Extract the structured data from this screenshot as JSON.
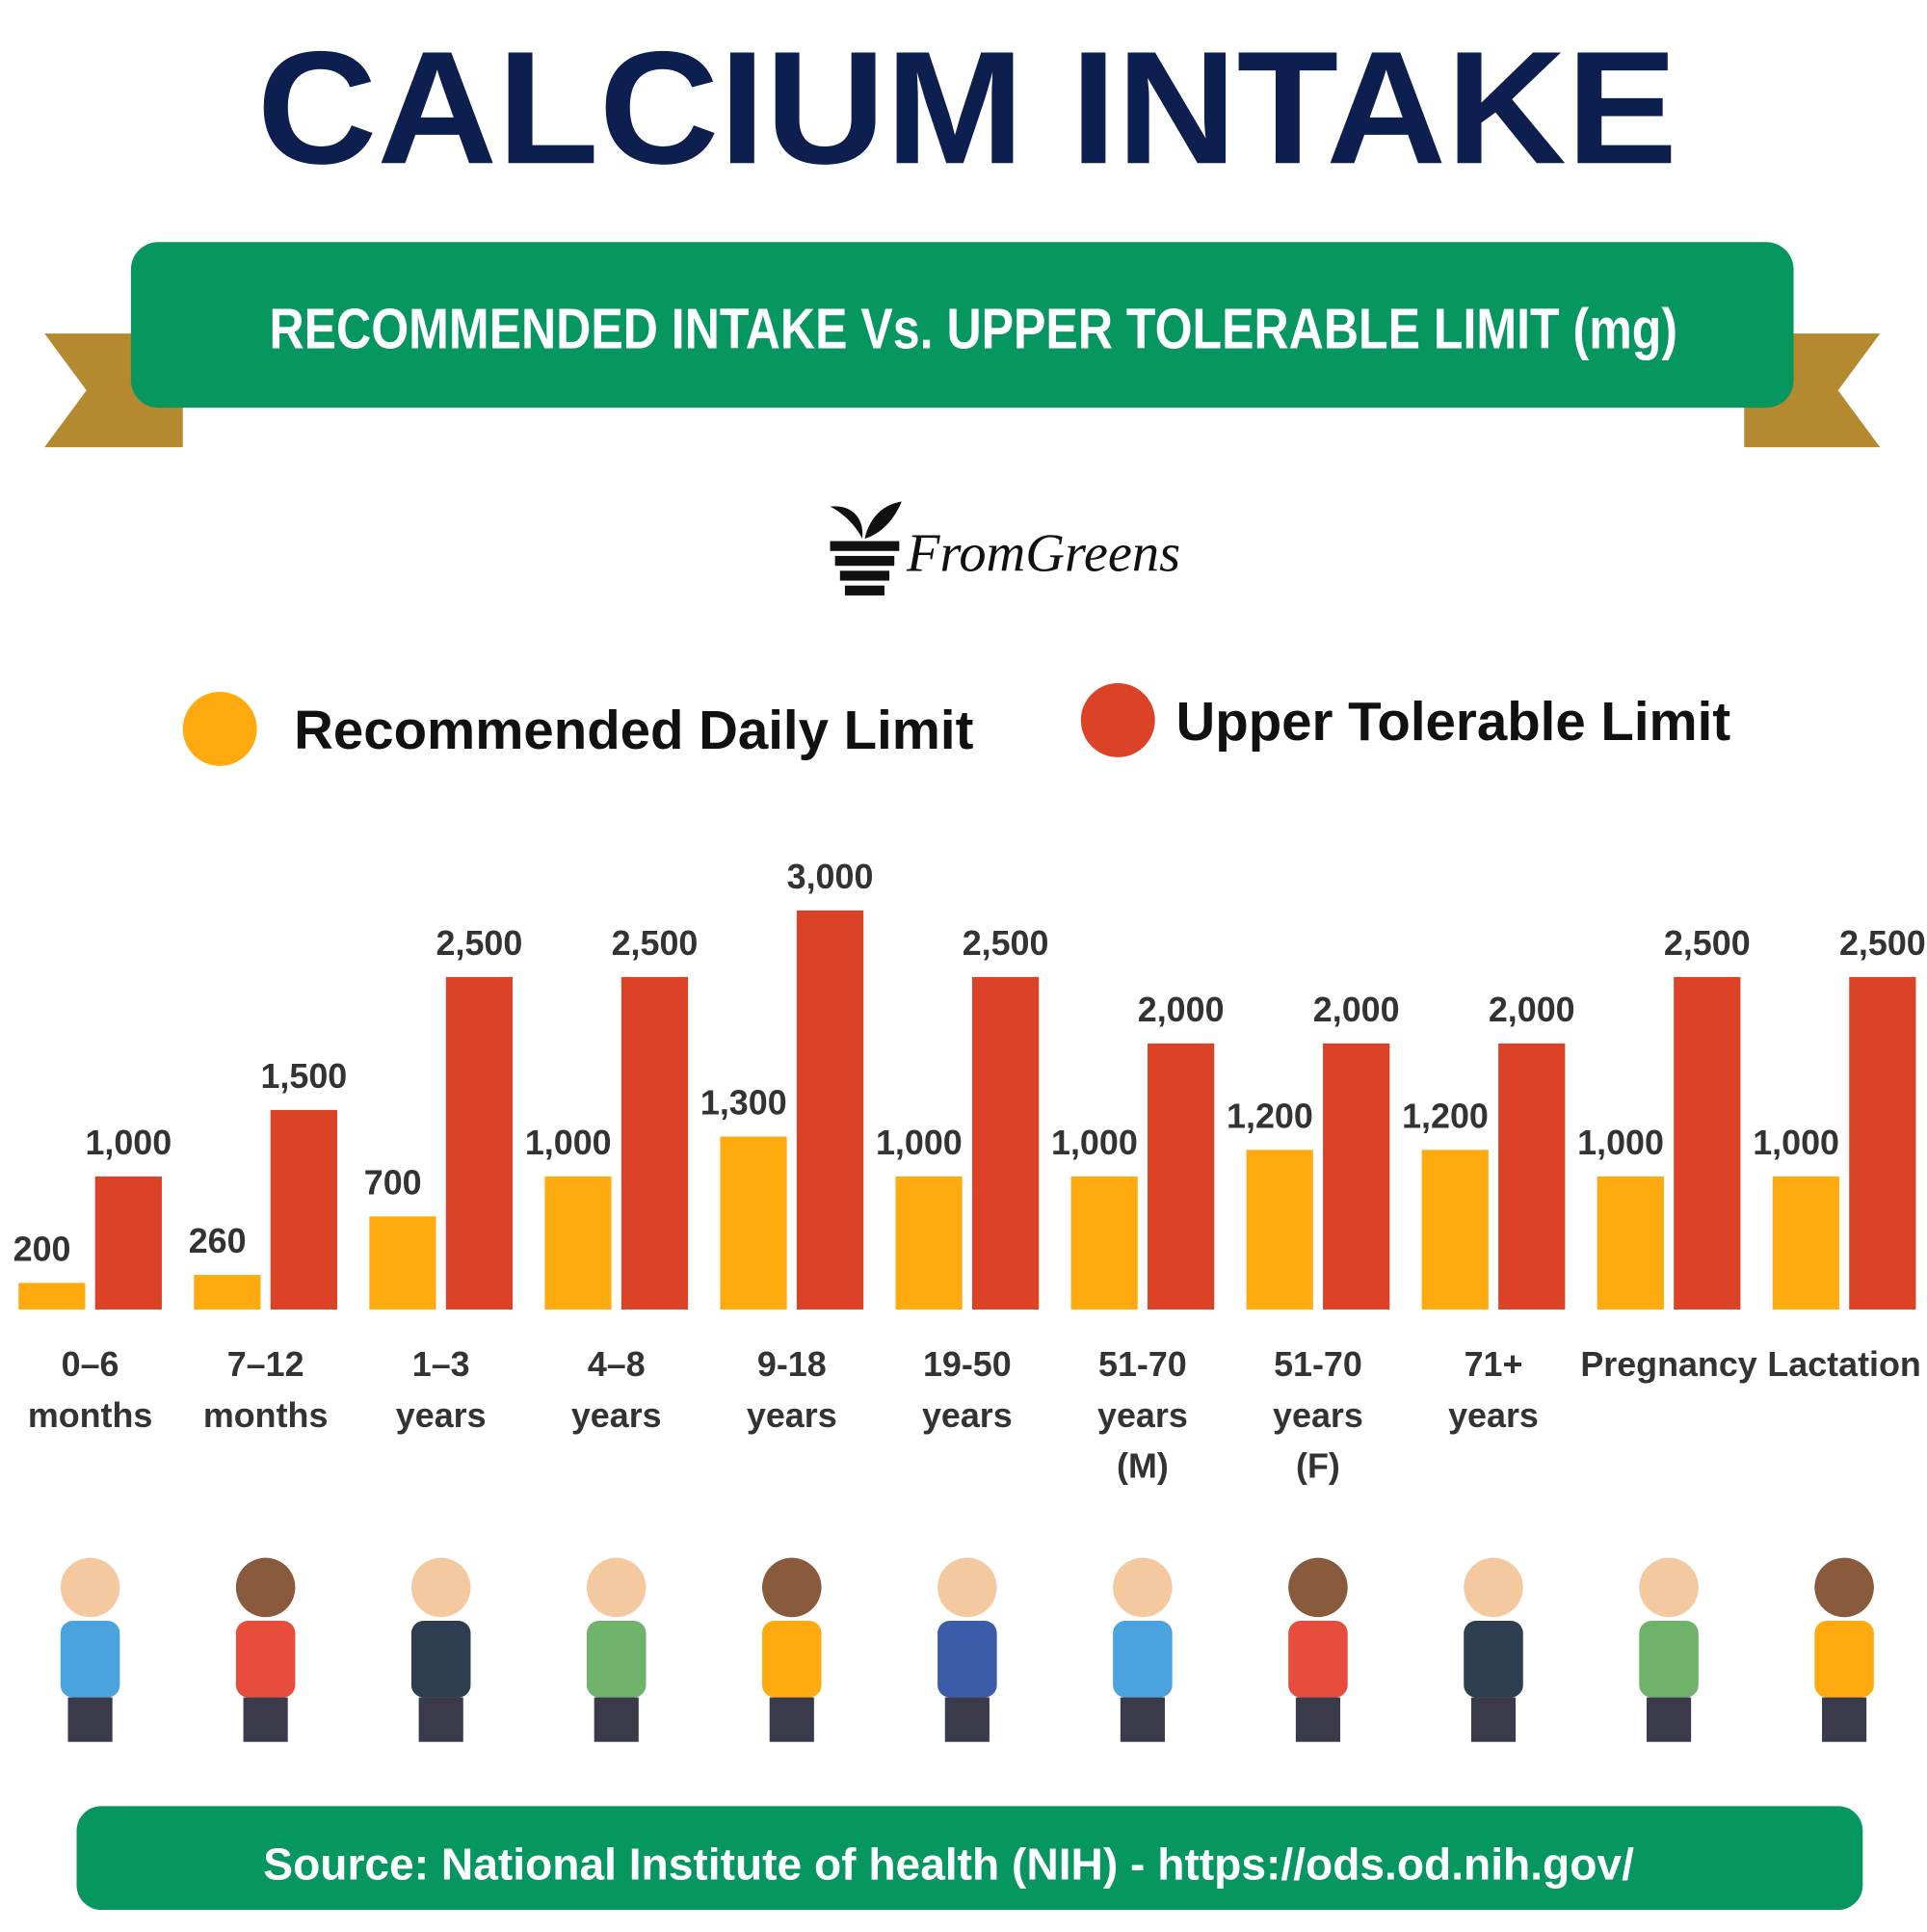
{
  "chart_data": {
    "type": "bar",
    "title": "CALCIUM INTAKE",
    "subtitle": "RECOMMENDED INTAKE Vs. UPPER TOLERABLE LIMIT (mg)",
    "brand": "FromGreens",
    "source": "Source: National Institute of health (NIH) - https://ods.od.nih.gov/",
    "categories": [
      [
        "0–6",
        "months"
      ],
      [
        "7–12",
        "months"
      ],
      [
        "1–3",
        "years"
      ],
      [
        "4–8",
        "years"
      ],
      [
        "9-18",
        "years"
      ],
      [
        "19-50",
        "years"
      ],
      [
        "51-70",
        "years",
        "(M)"
      ],
      [
        "51-70",
        "years",
        "(F)"
      ],
      [
        "71+",
        "years"
      ],
      [
        "Pregnancy"
      ],
      [
        "Lactation"
      ]
    ],
    "series": [
      {
        "name": "Recommended Daily Limit",
        "color": "#ffab0f",
        "values": [
          200,
          260,
          700,
          1000,
          1300,
          1000,
          1000,
          1200,
          1200,
          1000,
          1000
        ],
        "value_labels": [
          "200",
          "260",
          "700",
          "1,000",
          "1,300",
          "1,000",
          "1,000",
          "1,200",
          "1,200",
          "1,000",
          "1,000"
        ]
      },
      {
        "name": "Upper Tolerable Limit",
        "color": "#db4226",
        "values": [
          1000,
          1500,
          2500,
          2500,
          3000,
          2500,
          2000,
          2000,
          2000,
          2500,
          2500
        ],
        "value_labels": [
          "1,000",
          "1,500",
          "2,500",
          "2,500",
          "3,000",
          "2,500",
          "2,000",
          "2,000",
          "2,000",
          "2,500",
          "2,500"
        ]
      }
    ],
    "ylim": [
      0,
      3000
    ]
  }
}
